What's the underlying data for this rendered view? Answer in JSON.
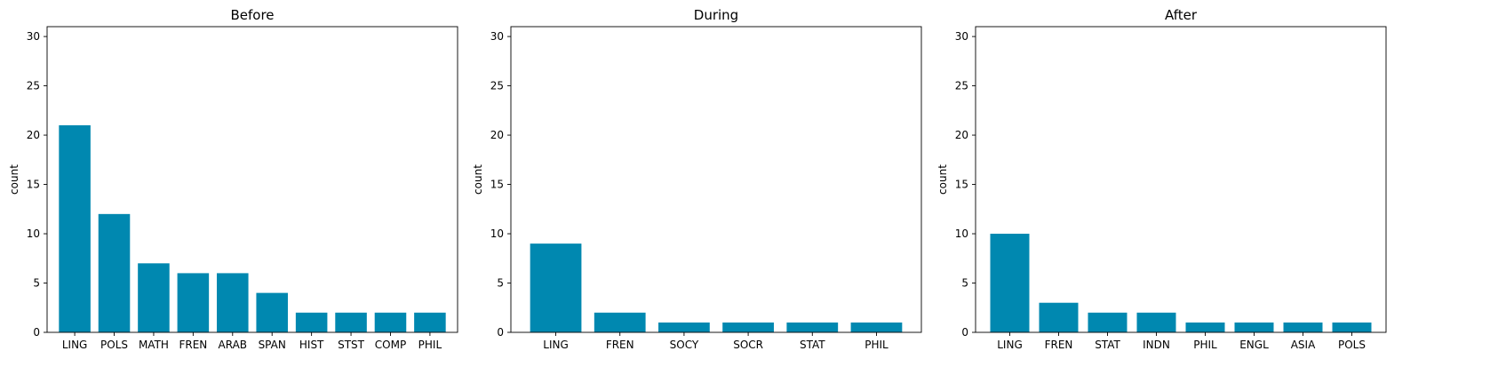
{
  "bar_color": "#0088b0",
  "chart_data": [
    {
      "type": "bar",
      "title": "Before",
      "xlabel": "",
      "ylabel": "count",
      "ylim": [
        0,
        31
      ],
      "yticks": [
        0,
        5,
        10,
        15,
        20,
        25,
        30
      ],
      "grid": false,
      "categories": [
        "LING",
        "POLS",
        "MATH",
        "FREN",
        "ARAB",
        "SPAN",
        "HIST",
        "STST",
        "COMP",
        "PHIL"
      ],
      "values": [
        21,
        12,
        7,
        6,
        6,
        4,
        2,
        2,
        2,
        2
      ]
    },
    {
      "type": "bar",
      "title": "During",
      "xlabel": "",
      "ylabel": "count",
      "ylim": [
        0,
        31
      ],
      "yticks": [
        0,
        5,
        10,
        15,
        20,
        25,
        30
      ],
      "grid": false,
      "categories": [
        "LING",
        "FREN",
        "SOCY",
        "SOCR",
        "STAT",
        "PHIL"
      ],
      "values": [
        9,
        2,
        1,
        1,
        1,
        1
      ]
    },
    {
      "type": "bar",
      "title": "After",
      "xlabel": "",
      "ylabel": "count",
      "ylim": [
        0,
        31
      ],
      "yticks": [
        0,
        5,
        10,
        15,
        20,
        25,
        30
      ],
      "grid": false,
      "categories": [
        "LING",
        "FREN",
        "STAT",
        "INDN",
        "PHIL",
        "ENGL",
        "ASIA",
        "POLS"
      ],
      "values": [
        10,
        3,
        2,
        2,
        1,
        1,
        1,
        1
      ]
    }
  ]
}
